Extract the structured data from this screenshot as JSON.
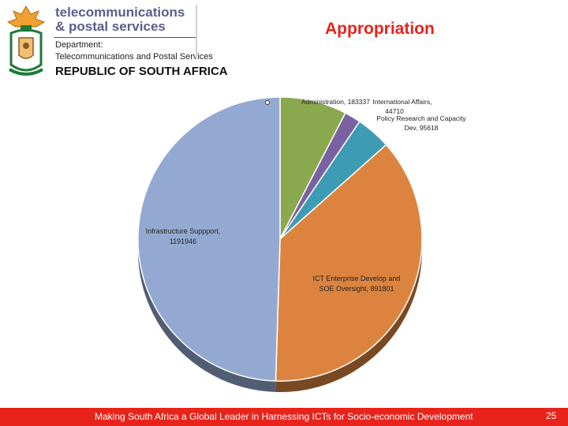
{
  "header": {
    "brand_line1": "telecommunications",
    "brand_line2": "& postal services",
    "department_label": "Department:",
    "department_name": "Telecommunications and Postal Services",
    "country": "REPUBLIC OF SOUTH AFRICA"
  },
  "slide": {
    "title": "Appropriation"
  },
  "chart_data": {
    "type": "pie",
    "title": "",
    "slices": [
      {
        "name": "Administration",
        "value": 183337,
        "label": "Administration, 183337",
        "color": "#8aa84e"
      },
      {
        "name": "International Affairs",
        "value": 44710,
        "label": "International Affairs, 44710",
        "color": "#7a62a2"
      },
      {
        "name": "Policy Research and Capacity Dev",
        "value": 95618,
        "label": "Policy Research and Capacity Dev, 95618",
        "color": "#3e9bb4"
      },
      {
        "name": "ICT Enterprise Develop and SOE Oversight",
        "value": 891801,
        "label": "ICT Enterprise Develop and SOE Oversight, 891801",
        "color": "#dc843f"
      },
      {
        "name": "Infrastructure Suppport",
        "value": 1191946,
        "label": "Infrastructure Suppport, 1191946",
        "color": "#93a9d1"
      }
    ]
  },
  "footer": {
    "text": "Making South Africa a Global Leader in Harnessing ICTs for Socio-economic Development",
    "page_number": "25"
  }
}
